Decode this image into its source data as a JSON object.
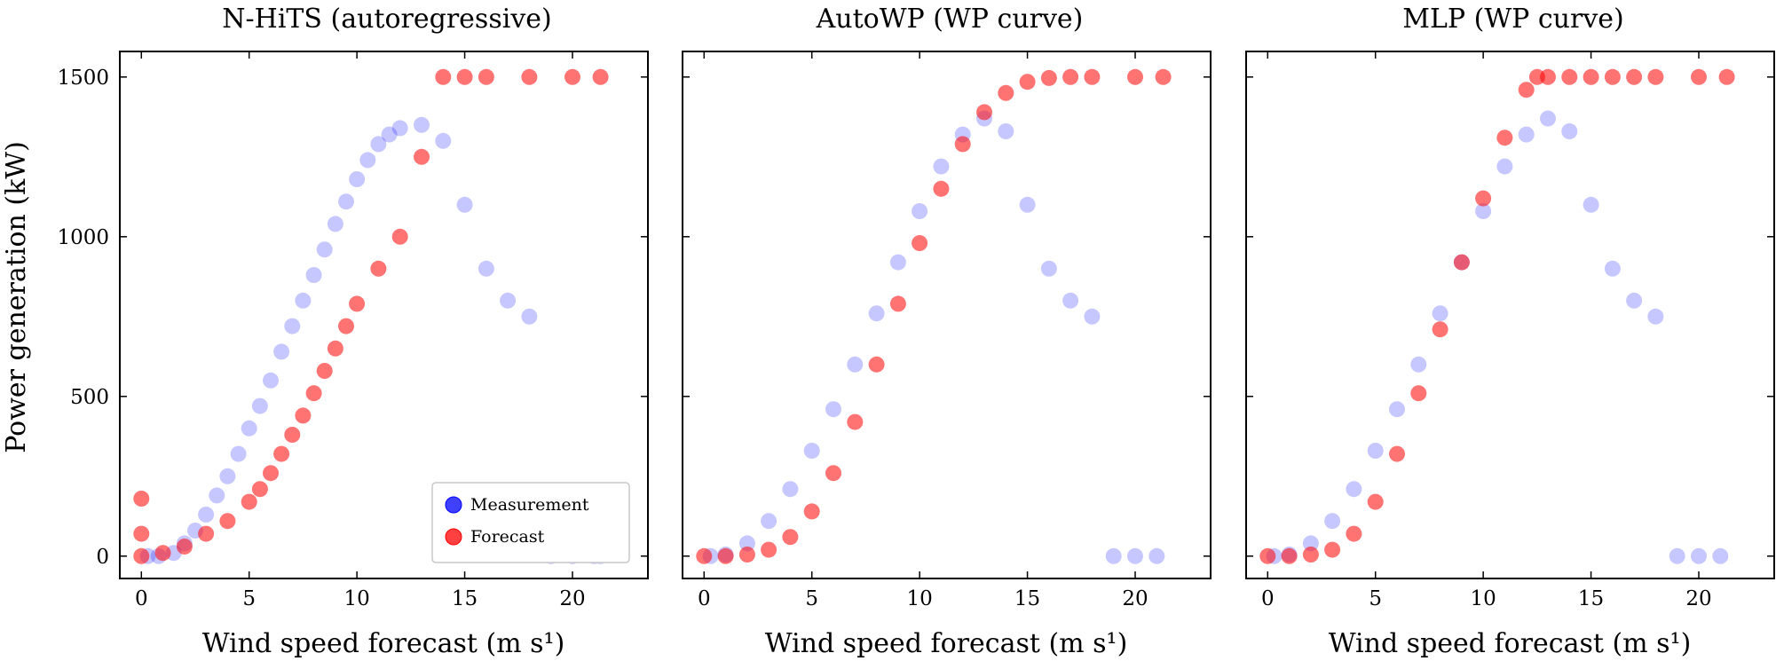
{
  "chart_data": [
    {
      "type": "scatter",
      "title": "N-HiTS (autoregressive)",
      "xlabel": "Wind speed forecast (m s¹)",
      "ylabel": "Power generation (kW)",
      "xlim": [
        -1,
        23.5
      ],
      "ylim": [
        -70,
        1580
      ],
      "xticks": [
        0,
        5,
        10,
        15,
        20
      ],
      "yticks": [
        0,
        500,
        1000,
        1500
      ],
      "grid": false,
      "legend": {
        "placement": "lower-right",
        "entries": [
          "Measurement",
          "Forecast"
        ]
      },
      "series": [
        {
          "name": "Measurement",
          "color": "#0000ff",
          "x": [
            0.3,
            0.8,
            1.5,
            2.0,
            2.5,
            3.0,
            3.5,
            4.0,
            4.5,
            5.0,
            5.5,
            6.0,
            6.5,
            7.0,
            7.5,
            8.0,
            8.5,
            9.0,
            9.5,
            10.0,
            10.5,
            11.0,
            11.5,
            12.0,
            13.0,
            14.0,
            15.0,
            16.0,
            17.0,
            18.0,
            19.0,
            20.0,
            21.0,
            21.3
          ],
          "y": [
            0,
            0,
            10,
            40,
            80,
            130,
            190,
            250,
            320,
            400,
            470,
            550,
            640,
            720,
            800,
            880,
            960,
            1040,
            1110,
            1180,
            1240,
            1290,
            1320,
            1340,
            1350,
            1300,
            1100,
            900,
            800,
            750,
            0,
            0,
            0,
            0
          ]
        },
        {
          "name": "Forecast",
          "color": "#ff0000",
          "x": [
            0.0,
            0.0,
            0.0,
            1.0,
            2.0,
            3.0,
            4.0,
            5.0,
            5.5,
            6.0,
            6.5,
            7.0,
            7.5,
            8.0,
            8.5,
            9.0,
            9.5,
            10.0,
            11.0,
            12.0,
            13.0,
            14.0,
            15.0,
            16.0,
            18.0,
            20.0,
            21.3
          ],
          "y": [
            0,
            70,
            180,
            10,
            30,
            70,
            110,
            170,
            210,
            260,
            320,
            380,
            440,
            510,
            580,
            650,
            720,
            790,
            900,
            1000,
            1250,
            1500,
            1500,
            1500,
            1500,
            1500,
            1500
          ]
        }
      ]
    },
    {
      "type": "scatter",
      "title": "AutoWP (WP curve)",
      "xlabel": "Wind speed forecast (m s¹)",
      "xlim": [
        -1,
        23.5
      ],
      "ylim": [
        -70,
        1580
      ],
      "xticks": [
        0,
        5,
        10,
        15,
        20
      ],
      "yticks": [
        0,
        500,
        1000,
        1500
      ],
      "grid": false,
      "series": [
        {
          "name": "Measurement",
          "color": "#0000ff",
          "x": [
            0.3,
            1.0,
            2.0,
            3.0,
            4.0,
            5.0,
            6.0,
            7.0,
            8.0,
            9.0,
            10.0,
            11.0,
            12.0,
            13.0,
            14.0,
            15.0,
            16.0,
            17.0,
            18.0,
            19.0,
            20.0,
            21.0
          ],
          "y": [
            0,
            5,
            40,
            110,
            210,
            330,
            460,
            600,
            760,
            920,
            1080,
            1220,
            1320,
            1370,
            1330,
            1100,
            900,
            800,
            750,
            0,
            0,
            0
          ]
        },
        {
          "name": "Forecast",
          "color": "#ff0000",
          "x": [
            0.0,
            1.0,
            2.0,
            3.0,
            4.0,
            5.0,
            6.0,
            7.0,
            8.0,
            9.0,
            10.0,
            11.0,
            12.0,
            13.0,
            14.0,
            15.0,
            16.0,
            17.0,
            18.0,
            20.0,
            21.3
          ],
          "y": [
            0,
            0,
            5,
            20,
            60,
            140,
            260,
            420,
            600,
            790,
            980,
            1150,
            1290,
            1390,
            1450,
            1485,
            1497,
            1500,
            1500,
            1500,
            1500
          ]
        }
      ]
    },
    {
      "type": "scatter",
      "title": "MLP (WP curve)",
      "xlabel": "Wind speed forecast (m s¹)",
      "xlim": [
        -1,
        23.5
      ],
      "ylim": [
        -70,
        1580
      ],
      "xticks": [
        0,
        5,
        10,
        15,
        20
      ],
      "yticks": [
        0,
        500,
        1000,
        1500
      ],
      "grid": false,
      "series": [
        {
          "name": "Measurement",
          "color": "#0000ff",
          "x": [
            0.3,
            1.0,
            2.0,
            3.0,
            4.0,
            5.0,
            6.0,
            7.0,
            8.0,
            9.0,
            10.0,
            11.0,
            12.0,
            13.0,
            14.0,
            15.0,
            16.0,
            17.0,
            18.0,
            19.0,
            20.0,
            21.0
          ],
          "y": [
            0,
            5,
            40,
            110,
            210,
            330,
            460,
            600,
            760,
            920,
            1080,
            1220,
            1320,
            1370,
            1330,
            1100,
            900,
            800,
            750,
            0,
            0,
            0
          ]
        },
        {
          "name": "Forecast",
          "color": "#ff0000",
          "x": [
            0.0,
            1.0,
            2.0,
            3.0,
            4.0,
            5.0,
            6.0,
            7.0,
            8.0,
            9.0,
            10.0,
            11.0,
            12.0,
            12.5,
            13.0,
            14.0,
            15.0,
            16.0,
            17.0,
            18.0,
            20.0,
            21.3
          ],
          "y": [
            0,
            0,
            5,
            20,
            70,
            170,
            320,
            510,
            710,
            920,
            1120,
            1310,
            1460,
            1500,
            1500,
            1500,
            1500,
            1500,
            1500,
            1500,
            1500,
            1500
          ]
        }
      ]
    }
  ]
}
